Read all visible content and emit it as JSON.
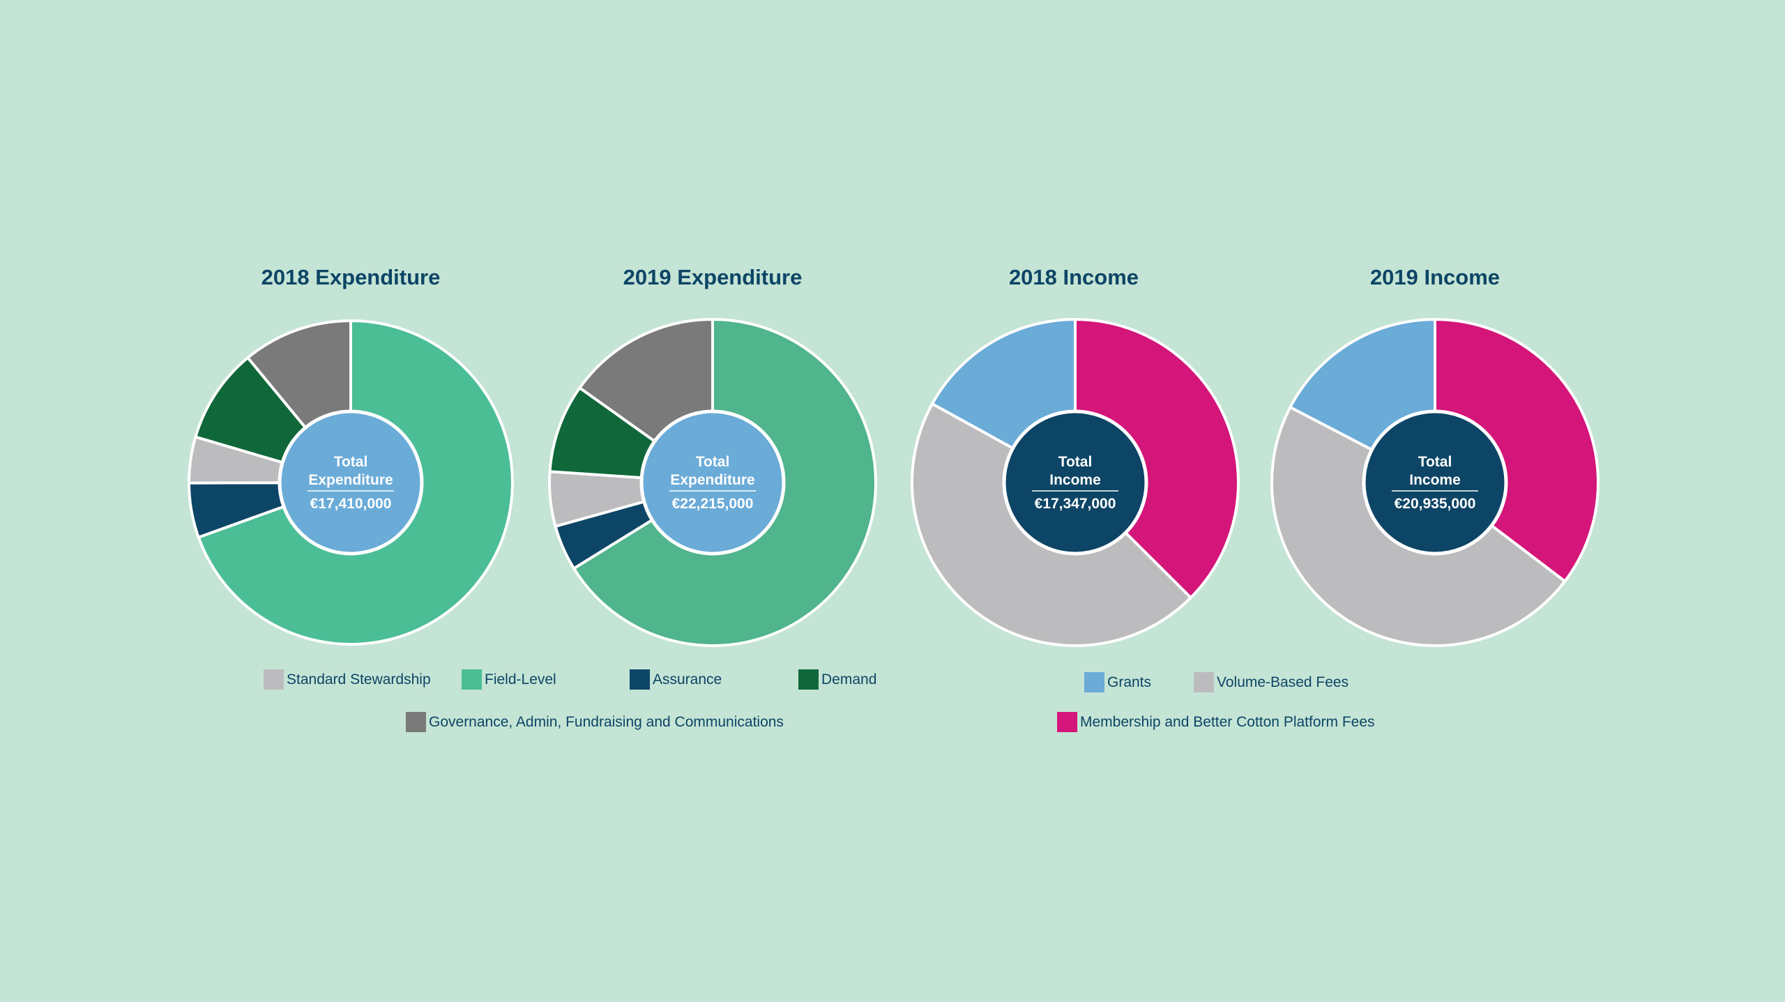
{
  "chart_data": [
    {
      "type": "pie",
      "title": "2018 Expenditure",
      "center": {
        "line1": "Total",
        "line2": "Expenditure",
        "total": "€17,410,000"
      },
      "center_color": "#6aabd8",
      "slices": [
        {
          "name": "Field-Level",
          "value": 12100000,
          "color": "#4bbe96"
        },
        {
          "name": "Assurance",
          "value": 950000,
          "color": "#0d4566"
        },
        {
          "name": "Standard Stewardship",
          "value": 800000,
          "color": "#bcbcbe"
        },
        {
          "name": "Demand",
          "value": 1650000,
          "color": "#10683a"
        },
        {
          "name": "Governance, Admin, Fundraising and Communications",
          "value": 1910000,
          "color": "#7a7a7a"
        }
      ]
    },
    {
      "type": "pie",
      "title": "2019 Expenditure",
      "center": {
        "line1": "Total",
        "line2": "Expenditure",
        "total": "€22,215,000"
      },
      "center_color": "#6aabd8",
      "slices": [
        {
          "name": "Field-Level",
          "value": 14700000,
          "color": "#50b48c"
        },
        {
          "name": "Assurance",
          "value": 1000000,
          "color": "#0d4566"
        },
        {
          "name": "Standard Stewardship",
          "value": 1200000,
          "color": "#bcbcbe"
        },
        {
          "name": "Demand",
          "value": 1950000,
          "color": "#10683a"
        },
        {
          "name": "Governance, Admin, Fundraising and Communications",
          "value": 3365000,
          "color": "#7a7a7a"
        }
      ]
    },
    {
      "type": "pie",
      "title": "2018 Income",
      "center": {
        "line1": "Total",
        "line2": "Income",
        "total": "€17,347,000"
      },
      "center_color": "#0d4566",
      "slices": [
        {
          "name": "Membership and Better Cotton Platform Fees",
          "value": 6500000,
          "color": "#d4157a"
        },
        {
          "name": "Volume-Based Fees",
          "value": 7900000,
          "color": "#bcbcbe"
        },
        {
          "name": "Grants",
          "value": 2947000,
          "color": "#6aabd8"
        }
      ]
    },
    {
      "type": "pie",
      "title": "2019 Income",
      "center": {
        "line1": "Total",
        "line2": "Income",
        "total": "€20,935,000"
      },
      "center_color": "#0d4566",
      "slices": [
        {
          "name": "Membership and Better Cotton Platform Fees",
          "value": 7400000,
          "color": "#d4157a"
        },
        {
          "name": "Volume-Based Fees",
          "value": 9900000,
          "color": "#bcbcbe"
        },
        {
          "name": "Grants",
          "value": 3635000,
          "color": "#6aabd8"
        }
      ]
    }
  ],
  "legends": {
    "expenditure": [
      {
        "label": "Standard Stewardship",
        "color": "#bcbcbe"
      },
      {
        "label": "Field-Level",
        "color": "#4bbe96"
      },
      {
        "label": "Assurance",
        "color": "#0d4566"
      },
      {
        "label": "Demand",
        "color": "#10683a"
      },
      {
        "label": "Governance, Admin, Fundraising and Communications",
        "color": "#7a7a7a"
      }
    ],
    "income": [
      {
        "label": "Grants",
        "color": "#6aabd8"
      },
      {
        "label": "Volume-Based Fees",
        "color": "#bcbcbe"
      },
      {
        "label": "Membership and Better Cotton Platform Fees",
        "color": "#d4157a"
      }
    ]
  }
}
